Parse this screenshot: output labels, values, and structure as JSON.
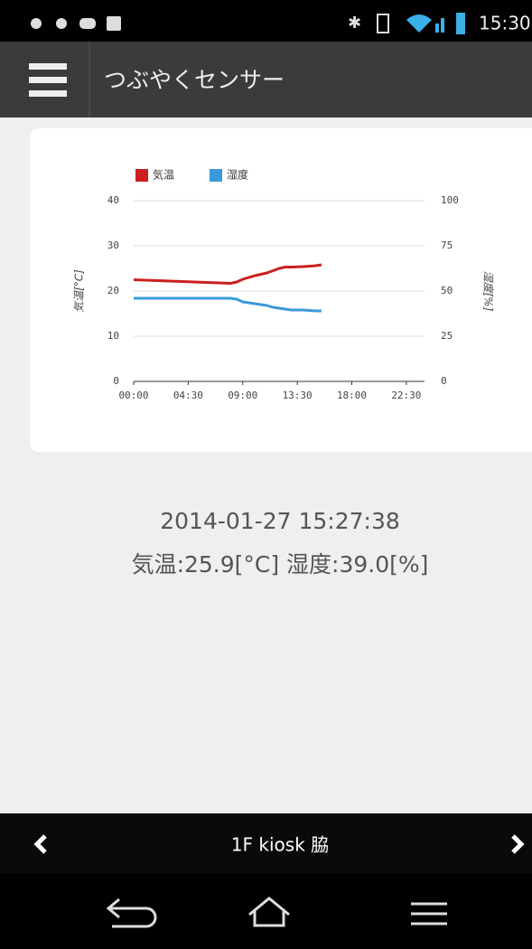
{
  "status_bar": {
    "time": "15:30"
  },
  "app_bar": {
    "title": "つぶやくセンサー"
  },
  "chart_data": {
    "type": "line",
    "x": [
      0,
      1,
      2,
      3,
      4,
      5,
      6,
      7,
      8,
      8.5,
      9,
      9.5,
      10,
      10.5,
      11,
      11.5,
      12,
      12.5,
      13,
      14,
      15,
      15.5
    ],
    "xlim": [
      0,
      24
    ],
    "xticks": [
      {
        "value": 0,
        "label": "00:00"
      },
      {
        "value": 4.5,
        "label": "04:30"
      },
      {
        "value": 9,
        "label": "09:00"
      },
      {
        "value": 13.5,
        "label": "13:30"
      },
      {
        "value": 18,
        "label": "18:00"
      },
      {
        "value": 22.5,
        "label": "22:30"
      }
    ],
    "ylim": [
      0,
      40
    ],
    "yticks": [
      0,
      10,
      20,
      30,
      40
    ],
    "y2lim": [
      0,
      100
    ],
    "y2ticks": [
      0,
      25,
      50,
      75,
      100
    ],
    "ylabel": "気温[°C]",
    "y2label": "湿度[%]",
    "grid": true,
    "legend": "top-left",
    "series": [
      {
        "name": "気温",
        "color": "#cc1f1f",
        "values": [
          22.5,
          22.4,
          22.3,
          22.2,
          22.1,
          22.0,
          21.9,
          21.8,
          21.7,
          22.0,
          22.6,
          23.0,
          23.4,
          23.7,
          24.0,
          24.5,
          25.0,
          25.3,
          25.3,
          25.4,
          25.6,
          25.8
        ]
      },
      {
        "name": "湿度",
        "color": "#3a9ad9",
        "axis": "y2",
        "values": [
          46,
          46,
          46,
          46,
          46,
          46,
          46,
          46,
          46,
          45.5,
          44,
          43.5,
          43,
          42.5,
          42,
          41,
          40.5,
          40,
          39.5,
          39.5,
          39,
          39
        ]
      }
    ]
  },
  "reading": {
    "timestamp": "2014-01-27 15:27:38",
    "values": "気温:25.9[°C] 湿度:39.0[%]"
  },
  "footer": {
    "location": "1F kiosk 脇"
  }
}
